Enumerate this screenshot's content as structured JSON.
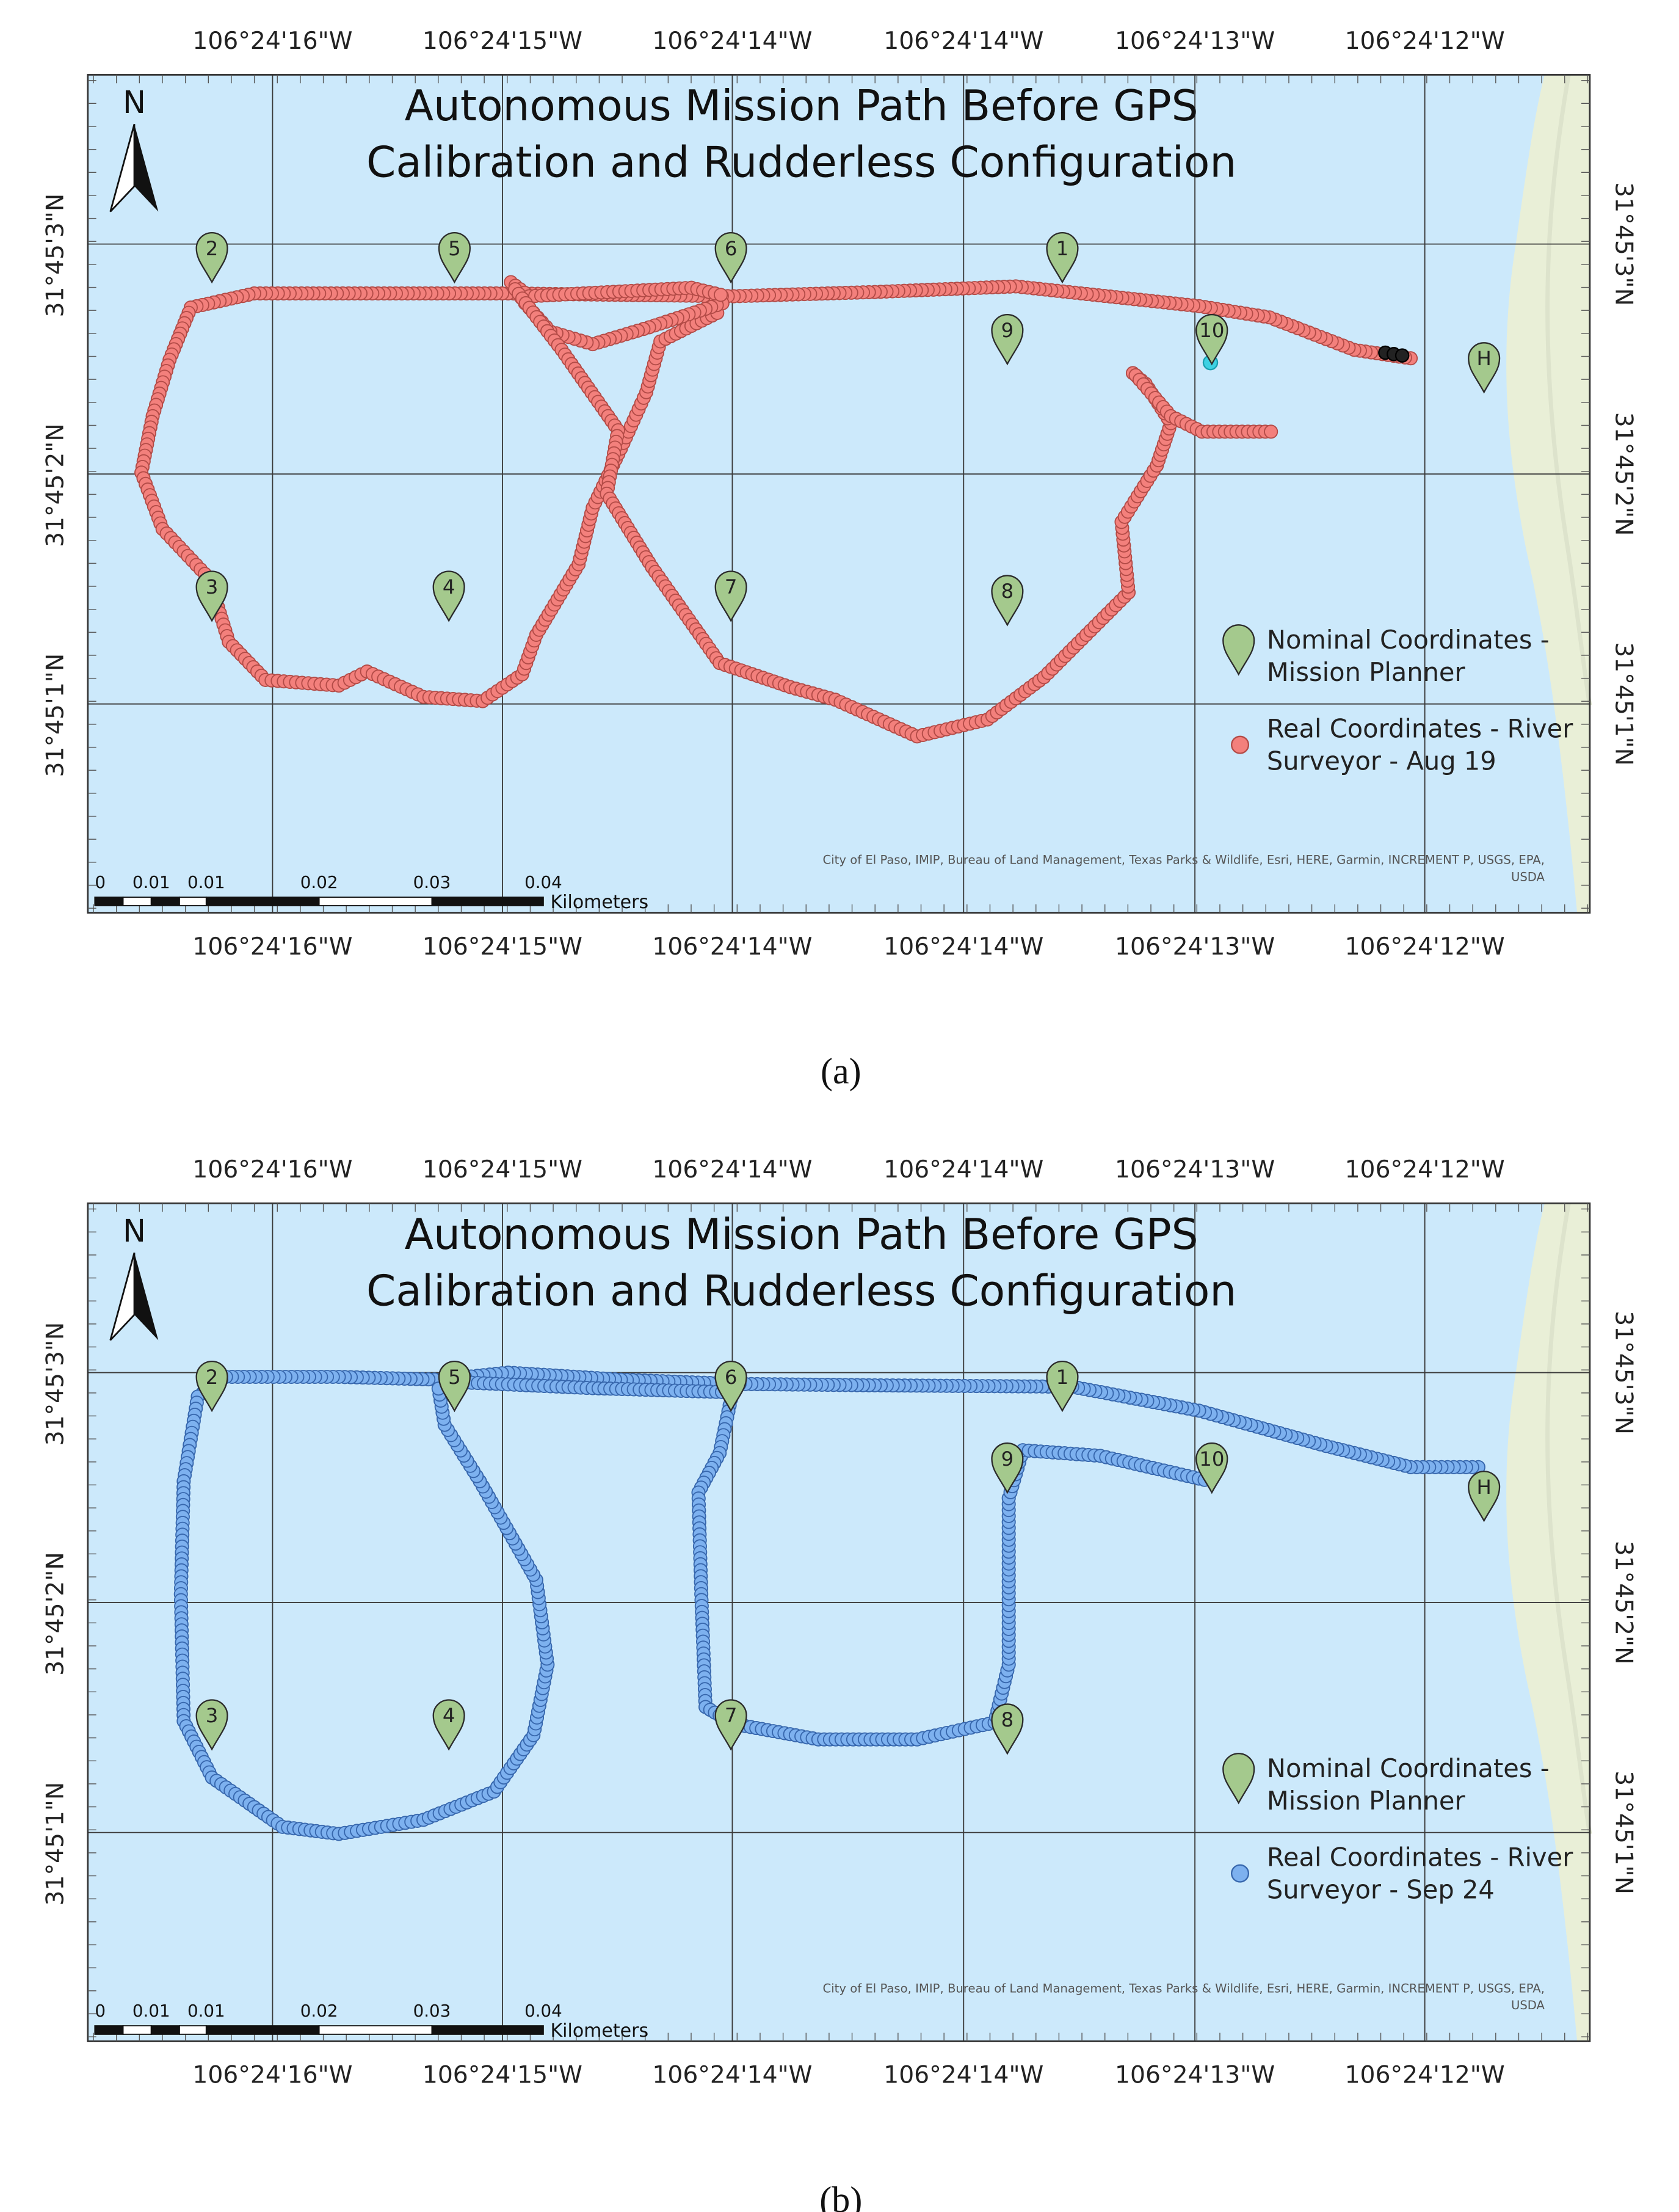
{
  "panels": [
    {
      "title": [
        "Autonomous Mission Path Before GPS",
        "Calibration and Rudderless Configuration"
      ],
      "top_longitudes": [
        "106°24'16\"W",
        "106°24'15\"W",
        "106°24'14\"W",
        "106°24'14\"W",
        "106°24'13\"W",
        "106°24'12\"W"
      ],
      "bottom_longitudes": [
        "106°24'16\"W",
        "106°24'15\"W",
        "106°24'14\"W",
        "106°24'14\"W",
        "106°24'13\"W",
        "106°24'12\"W"
      ],
      "left_latitudes": [
        "31°45'3\"N",
        "31°45'2\"N",
        "31°45'1\"N"
      ],
      "right_latitudes": [
        "31°45'3\"N",
        "31°45'2\"N",
        "31°45'1\"N"
      ],
      "north": "N",
      "waypoints": [
        "2",
        "5",
        "6",
        "1",
        "9",
        "10",
        "H",
        "3",
        "4",
        "7",
        "8"
      ],
      "legend": {
        "nominal": [
          "Nominal Coordinates -",
          "Mission Planner"
        ],
        "real": [
          "Real Coordinates - River",
          "Surveyor - Aug 19"
        ]
      },
      "scale_labels": [
        "0",
        "0.01",
        "0.01",
        "0.02",
        "0.03",
        "0.04"
      ],
      "scale_unit": "Kilometers",
      "attribution": [
        "City of El Paso, IMIP, Bureau of Land Management, Texas Parks & Wildlife, Esri, HERE, Garmin, INCREMENT P, USGS, EPA,",
        "USDA"
      ],
      "caption": "(a)"
    },
    {
      "title": [
        "Autonomous Mission Path Before GPS",
        "Calibration and Rudderless Configuration"
      ],
      "top_longitudes": [
        "106°24'16\"W",
        "106°24'15\"W",
        "106°24'14\"W",
        "106°24'14\"W",
        "106°24'13\"W",
        "106°24'12\"W"
      ],
      "bottom_longitudes": [
        "106°24'16\"W",
        "106°24'15\"W",
        "106°24'14\"W",
        "106°24'14\"W",
        "106°24'13\"W",
        "106°24'12\"W"
      ],
      "left_latitudes": [
        "31°45'3\"N",
        "31°45'2\"N",
        "31°45'1\"N"
      ],
      "right_latitudes": [
        "31°45'3\"N",
        "31°45'2\"N",
        "31°45'1\"N"
      ],
      "north": "N",
      "waypoints": [
        "2",
        "5",
        "6",
        "1",
        "9",
        "10",
        "H",
        "3",
        "4",
        "7",
        "8"
      ],
      "legend": {
        "nominal": [
          "Nominal Coordinates -",
          "Mission Planner"
        ],
        "real": [
          "Real Coordinates - River",
          "Surveyor - Sep 24"
        ]
      },
      "scale_labels": [
        "0",
        "0.01",
        "0.01",
        "0.02",
        "0.03",
        "0.04"
      ],
      "scale_unit": "Kilometers",
      "attribution": [
        "City of El Paso, IMIP, Bureau of Land Management, Texas Parks & Wildlife, Esri, HERE, Garmin, INCREMENT P, USGS, EPA,",
        "USDA"
      ],
      "caption": "(b)"
    }
  ]
}
